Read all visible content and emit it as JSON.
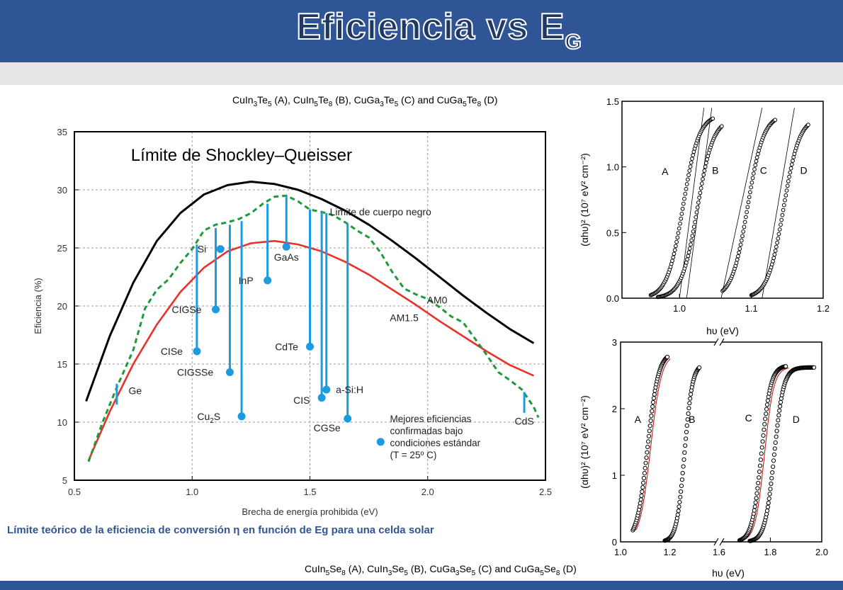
{
  "header": {
    "title_main": "Eficiencia vs E",
    "title_sub": "G"
  },
  "compounds_top": {
    "p1": "CuIn",
    "s1": "3",
    "p2": "Te",
    "s2": "5",
    "p3": " (A), CuIn",
    "s3": "5",
    "p4": "Te",
    "s4": "8",
    "p5": " (B),  CuGa",
    "s5": "3",
    "p6": "Te",
    "s6": "5",
    "p7": " (C) and CuGa",
    "s7": "5",
    "p8": "Te",
    "s8": "8",
    "p9": " (D)"
  },
  "compounds_bottom": {
    "p1": "CuIn",
    "s1": "5",
    "p2": "Se",
    "s2": "8",
    "p3": " (A), CuIn",
    "s3": "3",
    "p4": "Se",
    "s4": "5",
    "p5": " (B), CuGa",
    "s5": "3",
    "p6": "Se",
    "s6": "5",
    "p7": " (C) and CuGa",
    "s7": "5",
    "p8": "Se",
    "s8": "8",
    "p9": " (D)"
  },
  "caption": "Límite teórico de la eficiencia de conversión η en función de Eg para una celda solar",
  "chart_data": [
    {
      "type": "line",
      "title": "Límite de Shockley–Queisser",
      "xlabel": "Brecha de energía prohibida (eV)",
      "ylabel": "Eficiencia (%)",
      "xlim": [
        0.5,
        2.5
      ],
      "ylim": [
        5,
        35
      ],
      "xticks": [
        "0.5",
        "1.0",
        "1.5",
        "2.0",
        "2.5"
      ],
      "yticks": [
        "5",
        "10",
        "15",
        "20",
        "25",
        "30",
        "35"
      ],
      "series": [
        {
          "name": "Limite de cuerpo negro",
          "color": "#000000",
          "x": [
            0.55,
            0.65,
            0.75,
            0.85,
            0.95,
            1.05,
            1.15,
            1.25,
            1.35,
            1.45,
            1.55,
            1.65,
            1.75,
            1.85,
            1.95,
            2.05,
            2.15,
            2.25,
            2.35,
            2.45
          ],
          "y": [
            11.8,
            17.4,
            22.0,
            25.6,
            28.0,
            29.6,
            30.4,
            30.7,
            30.5,
            30.0,
            29.2,
            28.2,
            27.0,
            25.6,
            24.1,
            22.5,
            20.9,
            19.4,
            18.0,
            16.8
          ]
        },
        {
          "name": "AM0",
          "color": "#e8322a",
          "x": [
            0.56,
            0.65,
            0.75,
            0.85,
            0.95,
            1.05,
            1.15,
            1.25,
            1.35,
            1.45,
            1.55,
            1.65,
            1.75,
            1.85,
            1.95,
            2.05,
            2.15,
            2.25,
            2.35,
            2.45
          ],
          "y": [
            6.7,
            10.9,
            15.0,
            18.4,
            21.2,
            23.3,
            24.7,
            25.4,
            25.6,
            25.3,
            24.7,
            23.8,
            22.7,
            21.4,
            20.1,
            18.7,
            17.4,
            16.1,
            14.9,
            14.0
          ]
        },
        {
          "name": "AM1.5",
          "color": "#1f9a3a",
          "x": [
            0.56,
            0.62,
            0.68,
            0.75,
            0.8,
            0.85,
            0.9,
            0.95,
            1.0,
            1.05,
            1.1,
            1.15,
            1.2,
            1.25,
            1.3,
            1.35,
            1.4,
            1.45,
            1.5,
            1.55,
            1.6,
            1.65,
            1.7,
            1.75,
            1.8,
            1.85,
            1.9,
            1.95,
            2.0,
            2.05,
            2.1,
            2.15,
            2.2,
            2.25,
            2.3,
            2.35,
            2.4,
            2.45,
            2.47
          ],
          "y": [
            6.6,
            10.0,
            13.0,
            16.2,
            19.8,
            21.4,
            22.3,
            23.7,
            24.9,
            26.5,
            27.0,
            27.2,
            27.5,
            28.0,
            28.8,
            29.4,
            29.5,
            29.0,
            28.3,
            28.1,
            27.8,
            27.2,
            26.5,
            25.9,
            24.6,
            22.9,
            21.5,
            21.0,
            20.6,
            19.9,
            19.1,
            18.6,
            17.2,
            15.8,
            14.3,
            13.6,
            12.8,
            11.3,
            10.4
          ]
        }
      ],
      "annotations": [
        {
          "text": "Limite de cuerpo negro",
          "x": 1.8,
          "y": 27.8
        },
        {
          "text": "AM0",
          "x": 2.04,
          "y": 20.2
        },
        {
          "text": "AM1.5",
          "x": 1.9,
          "y": 18.7
        }
      ],
      "materials": [
        {
          "name": "Si",
          "eg": 1.12,
          "eff": 24.9,
          "label_dx": -0.06,
          "label_dy": 0
        },
        {
          "name": "GaAs",
          "eg": 1.4,
          "eff": 25.1,
          "label_dx": 0,
          "label_dy": -0.9
        },
        {
          "name": "InP",
          "eg": 1.32,
          "eff": 22.2,
          "label_dx": -0.06,
          "label_dy": 0
        },
        {
          "name": "CIGSe",
          "eg": 1.1,
          "eff": 19.7,
          "label_dx": -0.06,
          "label_dy": 0
        },
        {
          "name": "CdTe",
          "eg": 1.5,
          "eff": 16.5,
          "label_dx": -0.05,
          "label_dy": 0
        },
        {
          "name": "CISe",
          "eg": 1.02,
          "eff": 16.1,
          "label_dx": -0.06,
          "label_dy": 0
        },
        {
          "name": "CIGSSe",
          "eg": 1.16,
          "eff": 14.3,
          "label_dx": -0.07,
          "label_dy": 0
        },
        {
          "name": "a-Si:H",
          "eg": 1.57,
          "eff": 12.8,
          "label_dx": 0.04,
          "label_dy": 0
        },
        {
          "name": "CIS",
          "eg": 1.55,
          "eff": 12.1,
          "label_dx": -0.05,
          "label_dy": -0.2
        },
        {
          "name": "Cu2S",
          "eg": 1.21,
          "eff": 10.5,
          "label_dx": -0.09,
          "label_dy": 0
        },
        {
          "name": "CGSe",
          "eg": 1.66,
          "eff": 10.3,
          "label_dx": -0.03,
          "label_dy": -0.8
        }
      ],
      "bars": [
        {
          "x": 1.02,
          "top": 25.3,
          "bottom": 16.1
        },
        {
          "x": 1.1,
          "top": 26.7,
          "bottom": 19.7
        },
        {
          "x": 1.16,
          "top": 27.0,
          "bottom": 14.3
        },
        {
          "x": 1.21,
          "top": 27.3,
          "bottom": 10.5
        },
        {
          "x": 1.32,
          "top": 28.8,
          "bottom": 22.2
        },
        {
          "x": 1.4,
          "top": 29.5,
          "bottom": 25.1
        },
        {
          "x": 1.5,
          "top": 28.3,
          "bottom": 16.5
        },
        {
          "x": 1.55,
          "top": 28.1,
          "bottom": 12.1
        },
        {
          "x": 1.57,
          "top": 28.0,
          "bottom": 12.8
        },
        {
          "x": 1.66,
          "top": 27.1,
          "bottom": 10.3
        }
      ],
      "end_markers": [
        {
          "name": "Ge",
          "x": 0.68,
          "y": 12.4,
          "label_dx": 0.05,
          "label_dy": 0.3
        },
        {
          "name": "CdS",
          "x": 2.41,
          "y": 11.7,
          "label_dx": 0.0,
          "label_dy": -1.6
        }
      ],
      "legend_note": {
        "l1": "Mejores eficiencias",
        "l2": "confirmadas bajo",
        "l3": "condiciones estándar",
        "l4": "(T = 25º C)"
      }
    },
    {
      "type": "scatter",
      "xlabel": "hυ  (eV)",
      "ylabel": "(αhυ)² (10⁷ eV² cm⁻²)",
      "xlim": [
        0.92,
        1.2
      ],
      "ylim": [
        0,
        1.5
      ],
      "xticks": [
        "1.0",
        "1.1",
        "1.2"
      ],
      "yticks": [
        "0.0",
        "0.5",
        "1.0",
        "1.5"
      ],
      "series": [
        {
          "name": "A",
          "onset": 0.96,
          "center": 1.005,
          "width": 0.011,
          "plateau": 1.4,
          "end": 1.047
        },
        {
          "name": "B",
          "onset": 0.97,
          "center": 1.025,
          "width": 0.011,
          "plateau": 1.37,
          "end": 1.06
        },
        {
          "name": "C",
          "onset": 1.06,
          "center": 1.095,
          "width": 0.011,
          "plateau": 1.4,
          "end": 1.134
        },
        {
          "name": "D",
          "onset": 1.1,
          "center": 1.145,
          "width": 0.011,
          "plateau": 1.38,
          "end": 1.18
        }
      ],
      "fit_lines": [
        {
          "x0": 1.0,
          "x1": 1.034
        },
        {
          "x0": 1.01,
          "x1": 1.045
        },
        {
          "x0": 1.058,
          "x1": 1.115
        },
        {
          "x0": 1.115,
          "x1": 1.16
        }
      ],
      "labels": [
        {
          "t": "A",
          "x": 0.98,
          "y": 0.97
        },
        {
          "t": "B",
          "x": 1.05,
          "y": 0.98
        },
        {
          "t": "C",
          "x": 1.117,
          "y": 0.98
        },
        {
          "t": "D",
          "x": 1.173,
          "y": 0.98
        }
      ]
    },
    {
      "type": "scatter",
      "xlabel": "hυ  (eV)",
      "ylabel": "(αhυ)² (10⁷ eV² cm⁻²)",
      "xticks": [
        "1.0",
        "1.2",
        "1.6",
        "1.8",
        "2.0"
      ],
      "yticks": [
        "0",
        "1",
        "2",
        "3"
      ],
      "ylim": [
        0,
        3
      ],
      "series": [
        {
          "name": "A",
          "onset": 1.05,
          "center": 1.11,
          "width": 0.022,
          "plateau": 2.85,
          "end": 1.19
        },
        {
          "name": "B",
          "onset": 1.18,
          "center": 1.26,
          "width": 0.016,
          "plateau": 2.68,
          "end": 1.32
        },
        {
          "name": "C",
          "onset": 1.68,
          "center": 1.765,
          "width": 0.018,
          "plateau": 2.65,
          "end": 1.86
        },
        {
          "name": "D",
          "onset": 1.72,
          "center": 1.815,
          "width": 0.018,
          "plateau": 2.62,
          "end": 1.97
        }
      ],
      "labels": [
        {
          "t": "A",
          "x": 1.07,
          "y": 1.85
        },
        {
          "t": "B",
          "x": 1.29,
          "y": 1.85
        },
        {
          "t": "C",
          "x": 1.715,
          "y": 1.87
        },
        {
          "t": "D",
          "x": 1.9,
          "y": 1.85
        }
      ]
    }
  ]
}
